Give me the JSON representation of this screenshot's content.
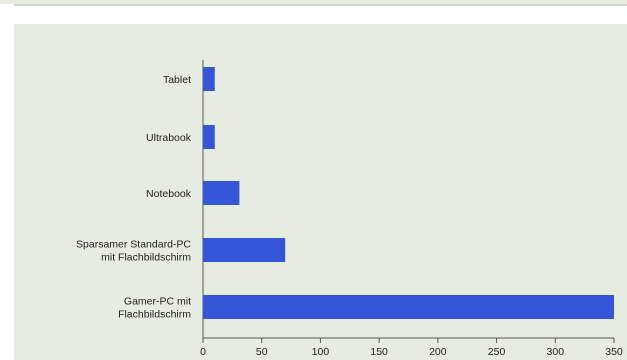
{
  "chart_data": {
    "type": "bar",
    "orientation": "horizontal",
    "categories": [
      [
        "Tablet"
      ],
      [
        "Ultrabook"
      ],
      [
        "Notebook"
      ],
      [
        "Sparsamer Standard-PC",
        "mit Flachbildschirm"
      ],
      [
        "Gamer-PC mit",
        "Flachbildschirm"
      ]
    ],
    "values": [
      10,
      10,
      31,
      70,
      350
    ],
    "xlim": [
      0,
      350
    ],
    "xticks": [
      0,
      50,
      100,
      150,
      200,
      250,
      300,
      350
    ],
    "title": "",
    "xlabel": "",
    "ylabel": "",
    "grid": false,
    "legend": "none",
    "colors": {
      "bar": "#3556d8",
      "panel": "#e6ecdf",
      "axis": "#555555",
      "text": "#222222"
    }
  }
}
